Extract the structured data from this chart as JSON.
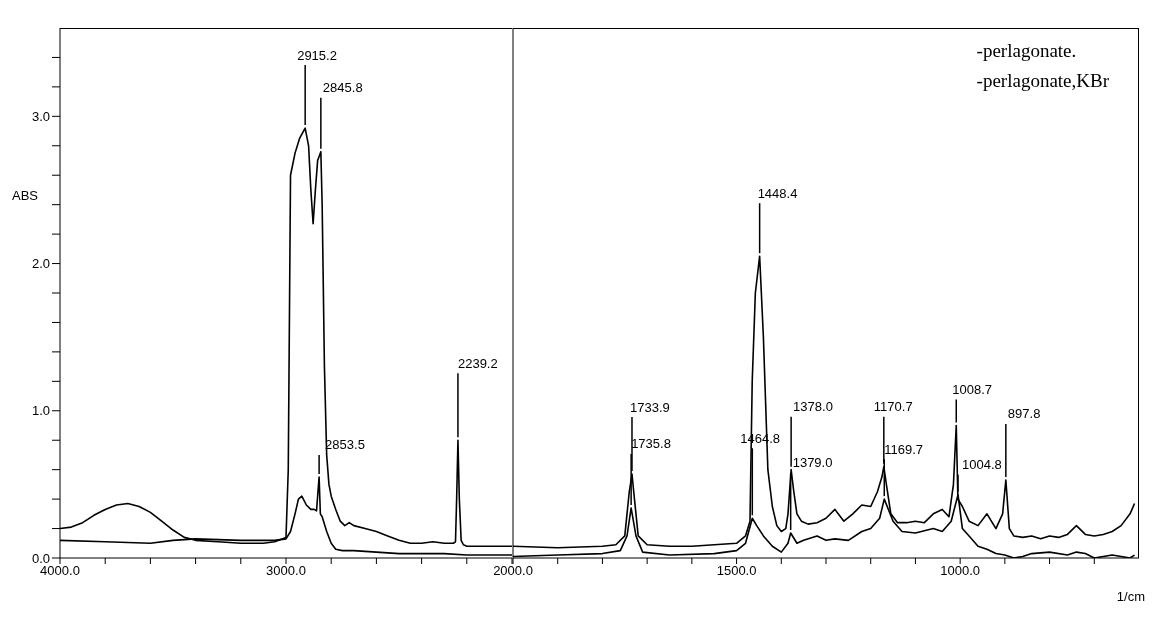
{
  "chart_data": [
    {
      "type": "line",
      "ylabel": "ABS",
      "xlim": [
        4000,
        2000
      ],
      "ylim": [
        0,
        3.6
      ],
      "marker": "none",
      "xticks": [
        {
          "value": 4000,
          "label": "4000.0"
        },
        {
          "value": 3800,
          "label": null
        },
        {
          "value": 3600,
          "label": null
        },
        {
          "value": 3400,
          "label": null
        },
        {
          "value": 3200,
          "label": null
        },
        {
          "value": 3000,
          "label": "3000.0"
        },
        {
          "value": 2800,
          "label": null
        },
        {
          "value": 2600,
          "label": null
        },
        {
          "value": 2400,
          "label": null
        },
        {
          "value": 2200,
          "label": null
        },
        {
          "value": 2000,
          "label": null
        }
      ],
      "yticks": [
        {
          "value": 0,
          "label": "0.0"
        },
        {
          "value": 0.2,
          "label": null
        },
        {
          "value": 0.4,
          "label": null
        },
        {
          "value": 0.6,
          "label": null
        },
        {
          "value": 0.8,
          "label": null
        },
        {
          "value": 1,
          "label": "1.0"
        },
        {
          "value": 1.2,
          "label": null
        },
        {
          "value": 1.4,
          "label": null
        },
        {
          "value": 1.6,
          "label": null
        },
        {
          "value": 1.8,
          "label": null
        },
        {
          "value": 2,
          "label": "2.0"
        },
        {
          "value": 2.2,
          "label": null
        },
        {
          "value": 2.4,
          "label": null
        },
        {
          "value": 2.6,
          "label": null
        },
        {
          "value": 2.8,
          "label": null
        },
        {
          "value": 3,
          "label": "3.0"
        },
        {
          "value": 3.2,
          "label": null
        },
        {
          "value": 3.4,
          "label": null
        }
      ],
      "series": [
        {
          "color": "#000000",
          "x": [
            4000,
            3950,
            3900,
            3850,
            3800,
            3750,
            3700,
            3650,
            3600,
            3550,
            3500,
            3450,
            3400,
            3300,
            3200,
            3100,
            3050,
            3000,
            2990,
            2980,
            2960,
            2940,
            2915.2,
            2900,
            2890,
            2880,
            2870,
            2860,
            2845.8,
            2840,
            2830,
            2820,
            2810,
            2800,
            2780,
            2760,
            2740,
            2720,
            2700,
            2650,
            2600,
            2550,
            2500,
            2450,
            2400,
            2350,
            2300,
            2260,
            2250,
            2245,
            2239.2,
            2233,
            2225,
            2215,
            2200,
            2150,
            2100,
            2050,
            2000
          ],
          "values": [
            0.2,
            0.21,
            0.24,
            0.29,
            0.33,
            0.36,
            0.37,
            0.35,
            0.31,
            0.25,
            0.19,
            0.14,
            0.12,
            0.11,
            0.1,
            0.1,
            0.11,
            0.14,
            0.6,
            2.6,
            2.75,
            2.85,
            2.92,
            2.8,
            2.5,
            2.27,
            2.5,
            2.7,
            2.76,
            2.4,
            1.3,
            0.7,
            0.5,
            0.42,
            0.33,
            0.25,
            0.22,
            0.24,
            0.22,
            0.2,
            0.18,
            0.15,
            0.12,
            0.1,
            0.1,
            0.11,
            0.1,
            0.1,
            0.11,
            0.4,
            0.8,
            0.4,
            0.12,
            0.09,
            0.08,
            0.08,
            0.08,
            0.08,
            0.08
          ]
        },
        {
          "color": "#000000",
          "x": [
            4000,
            3800,
            3600,
            3500,
            3400,
            3200,
            3100,
            3050,
            3000,
            2980,
            2960,
            2945,
            2930,
            2910,
            2890,
            2875,
            2865,
            2853.5,
            2848,
            2840,
            2820,
            2800,
            2780,
            2750,
            2700,
            2600,
            2500,
            2400,
            2300,
            2200,
            2100,
            2000
          ],
          "values": [
            0.12,
            0.11,
            0.1,
            0.12,
            0.13,
            0.12,
            0.12,
            0.12,
            0.13,
            0.18,
            0.3,
            0.4,
            0.42,
            0.36,
            0.33,
            0.33,
            0.32,
            0.55,
            0.3,
            0.28,
            0.18,
            0.1,
            0.06,
            0.05,
            0.05,
            0.04,
            0.03,
            0.03,
            0.03,
            0.02,
            0.02,
            0.02
          ]
        }
      ],
      "annotations": [
        {
          "text": "2915.2",
          "x": 2915.2,
          "y": 2.92
        },
        {
          "text": "2845.8",
          "x": 2845.8,
          "y": 2.76
        },
        {
          "text": "2853.5",
          "x": 2853.5,
          "y": 0.55
        },
        {
          "text": "2239.2",
          "x": 2239.2,
          "y": 0.8
        }
      ]
    },
    {
      "type": "line",
      "xlabel": "1/cm",
      "xlim": [
        2000,
        600
      ],
      "ylim": [
        0,
        3.6
      ],
      "marker": "none",
      "tick_labels": "x",
      "xticks": [
        {
          "value": 2000,
          "label": "2000.0"
        },
        {
          "value": 1900,
          "label": null
        },
        {
          "value": 1800,
          "label": null
        },
        {
          "value": 1700,
          "label": null
        },
        {
          "value": 1600,
          "label": null
        },
        {
          "value": 1500,
          "label": "1500.0"
        },
        {
          "value": 1400,
          "label": null
        },
        {
          "value": 1300,
          "label": null
        },
        {
          "value": 1200,
          "label": null
        },
        {
          "value": 1100,
          "label": null
        },
        {
          "value": 1000,
          "label": "1000.0"
        },
        {
          "value": 900,
          "label": null
        },
        {
          "value": 800,
          "label": null
        },
        {
          "value": 700,
          "label": null
        }
      ],
      "series": [
        {
          "color": "#000000",
          "x": [
            2000,
            1900,
            1800,
            1770,
            1750,
            1740,
            1733.9,
            1730,
            1720,
            1700,
            1650,
            1600,
            1550,
            1500,
            1480,
            1470,
            1465,
            1458,
            1448.4,
            1440,
            1430,
            1420,
            1410,
            1400,
            1390,
            1385,
            1378.0,
            1372,
            1365,
            1355,
            1340,
            1320,
            1300,
            1280,
            1260,
            1240,
            1220,
            1200,
            1185,
            1175,
            1170.7,
            1165,
            1155,
            1140,
            1120,
            1100,
            1080,
            1060,
            1040,
            1025,
            1015,
            1008.7,
            1005,
            995,
            980,
            960,
            940,
            920,
            905,
            897.8,
            890,
            880,
            860,
            840,
            820,
            800,
            780,
            760,
            740,
            720,
            700,
            680,
            660,
            640,
            620,
            610
          ],
          "values": [
            0.08,
            0.07,
            0.08,
            0.09,
            0.15,
            0.45,
            0.57,
            0.45,
            0.15,
            0.09,
            0.08,
            0.08,
            0.09,
            0.1,
            0.15,
            0.25,
            1.2,
            1.8,
            2.05,
            1.5,
            0.6,
            0.35,
            0.22,
            0.18,
            0.2,
            0.3,
            0.6,
            0.45,
            0.3,
            0.25,
            0.23,
            0.24,
            0.27,
            0.33,
            0.25,
            0.3,
            0.36,
            0.35,
            0.45,
            0.55,
            0.62,
            0.5,
            0.3,
            0.24,
            0.24,
            0.25,
            0.24,
            0.3,
            0.33,
            0.28,
            0.5,
            0.9,
            0.4,
            0.35,
            0.25,
            0.22,
            0.3,
            0.2,
            0.3,
            0.53,
            0.2,
            0.15,
            0.14,
            0.15,
            0.13,
            0.15,
            0.14,
            0.16,
            0.22,
            0.16,
            0.15,
            0.16,
            0.18,
            0.22,
            0.3,
            0.37
          ]
        },
        {
          "color": "#000000",
          "x": [
            2000,
            1900,
            1800,
            1760,
            1745,
            1735.8,
            1725,
            1710,
            1650,
            1550,
            1500,
            1480,
            1464.8,
            1455,
            1440,
            1420,
            1400,
            1385,
            1379.0,
            1365,
            1350,
            1320,
            1300,
            1280,
            1250,
            1220,
            1200,
            1180,
            1169.7,
            1150,
            1130,
            1100,
            1060,
            1040,
            1020,
            1004.8,
            995,
            980,
            960,
            940,
            920,
            900,
            880,
            860,
            840,
            800,
            760,
            740,
            720,
            700,
            660,
            640,
            620,
            610
          ],
          "values": [
            0.01,
            0.02,
            0.03,
            0.05,
            0.15,
            0.34,
            0.15,
            0.04,
            0.02,
            0.03,
            0.05,
            0.1,
            0.27,
            0.22,
            0.15,
            0.08,
            0.04,
            0.1,
            0.17,
            0.1,
            0.12,
            0.15,
            0.12,
            0.13,
            0.12,
            0.18,
            0.2,
            0.27,
            0.4,
            0.25,
            0.18,
            0.17,
            0.2,
            0.18,
            0.25,
            0.43,
            0.2,
            0.15,
            0.08,
            0.06,
            0.03,
            0.02,
            0.0,
            0.01,
            0.03,
            0.04,
            0.02,
            0.04,
            0.03,
            0.0,
            0.02,
            0.01,
            0.0,
            0.02
          ]
        }
      ],
      "annotations": [
        "-perlagonate.",
        "-perlagonate,KBr",
        {
          "text": "1448.4",
          "x": 1448.4,
          "y": 2.05
        },
        {
          "text": "1733.9",
          "x": 1733.9,
          "y": 0.57
        },
        {
          "text": "1735.8",
          "x": 1735.8,
          "y": 0.34
        },
        {
          "text": "1464.8",
          "x": 1464.8,
          "y": 0.27
        },
        {
          "text": "1378.0",
          "x": 1378.0,
          "y": 0.6
        },
        {
          "text": "1379.0",
          "x": 1379.0,
          "y": 0.17
        },
        {
          "text": "1170.7",
          "x": 1170.7,
          "y": 0.62
        },
        {
          "text": "1169.7",
          "x": 1169.7,
          "y": 0.4
        },
        {
          "text": "1008.7",
          "x": 1008.7,
          "y": 0.9
        },
        {
          "text": "1004.8",
          "x": 1004.8,
          "y": 0.43
        },
        {
          "text": "897.8",
          "x": 897.8,
          "y": 0.53
        }
      ]
    }
  ]
}
